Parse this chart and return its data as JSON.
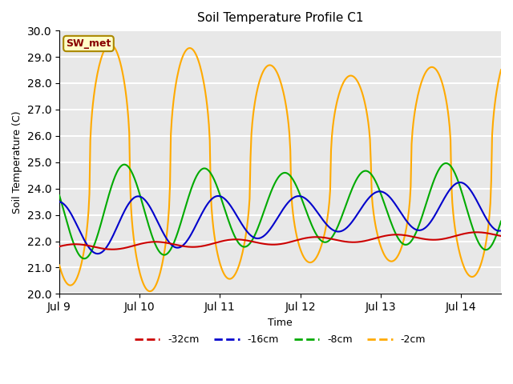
{
  "title": "Soil Temperature Profile C1",
  "xlabel": "Time",
  "ylabel": "Soil Temperature (C)",
  "ylim": [
    20.0,
    30.0
  ],
  "yticks": [
    20.0,
    21.0,
    22.0,
    23.0,
    24.0,
    25.0,
    26.0,
    27.0,
    28.0,
    29.0,
    30.0
  ],
  "xtick_labels": [
    "Jul 9",
    "Jul 10",
    "Jul 11",
    "Jul 12",
    "Jul 13",
    "Jul 14"
  ],
  "annotation_text": "SW_met",
  "annotation_bg": "#ffffc8",
  "annotation_border": "#aa8800",
  "annotation_text_color": "#880000",
  "series_colors": {
    "-32cm": "#cc0000",
    "-16cm": "#0000cc",
    "-8cm": "#00aa00",
    "-2cm": "#ffaa00"
  },
  "legend_entries": [
    "-32cm",
    "-16cm",
    "-8cm",
    "-2cm"
  ],
  "bg_color": "#e8e8e8",
  "grid_color": "#ffffff",
  "xlim": [
    0,
    5.5
  ],
  "xtick_pos": [
    0,
    1,
    2,
    3,
    4,
    5
  ]
}
